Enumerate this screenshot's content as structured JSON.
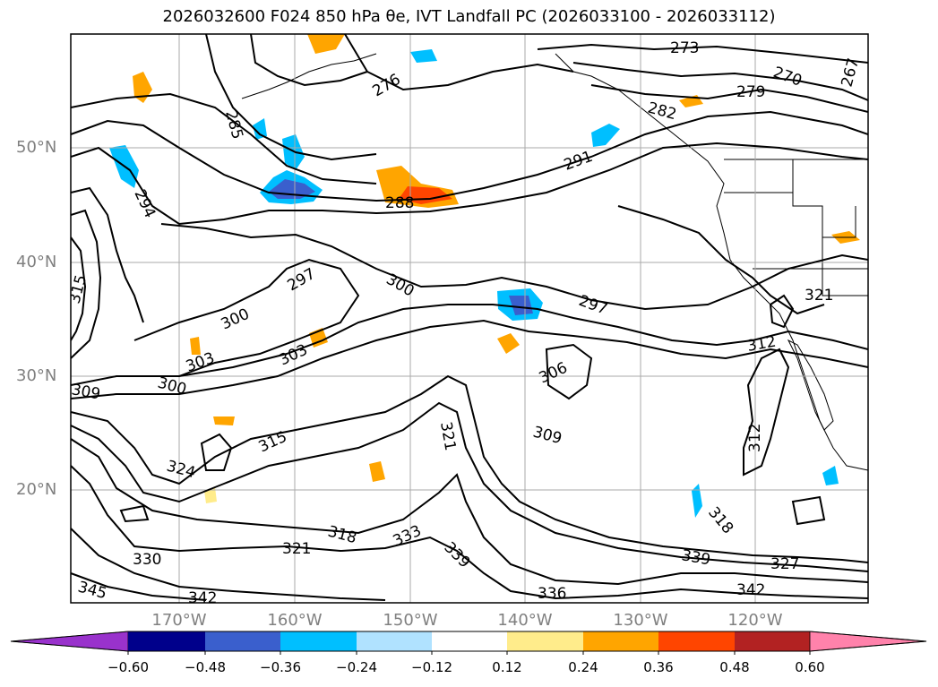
{
  "title": "2026032600 F024 850 hPa θe, IVT Landfall PC (2026033100 - 2026033112)",
  "latitude_labels": [
    "50°N",
    "40°N",
    "30°N",
    "20°N"
  ],
  "longitude_labels": [
    "170°W",
    "160°W",
    "150°W",
    "140°W",
    "130°W",
    "120°W"
  ],
  "contour_labels": [
    "273",
    "270",
    "267",
    "279",
    "276",
    "282",
    "285",
    "291",
    "294",
    "288",
    "297",
    "300",
    "297",
    "300",
    "303",
    "303",
    "300",
    "306",
    "309",
    "309",
    "312",
    "312",
    "315",
    "315",
    "318",
    "318",
    "321",
    "321",
    "321",
    "324",
    "327",
    "330",
    "333",
    "336",
    "339",
    "339",
    "342",
    "342",
    "345"
  ],
  "colorbar": {
    "ticks": [
      "−0.60",
      "−0.48",
      "−0.36",
      "−0.24",
      "−0.12",
      "0.12",
      "0.24",
      "0.36",
      "0.48",
      "0.60"
    ],
    "colors": [
      "#9932cc",
      "#00008b",
      "#3a5fcd",
      "#00bfff",
      "#b0e2ff",
      "#ffffff",
      "#ffec8b",
      "#ffa500",
      "#ff4500",
      "#b22222",
      "#ff82ab"
    ]
  }
}
